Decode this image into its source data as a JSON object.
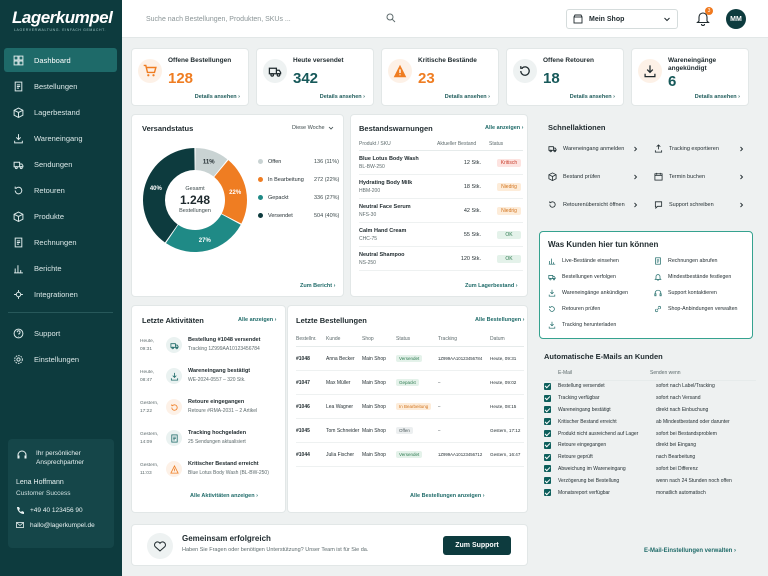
{
  "brand": {
    "name": "Lagerkumpel",
    "tagline": "LAGERVERWALTUNG. EINFACH GEMACHT."
  },
  "sidebar": {
    "items": [
      {
        "label": "Dashboard",
        "icon": "dashboard-icon"
      },
      {
        "label": "Bestellungen",
        "icon": "orders-icon"
      },
      {
        "label": "Lagerbestand",
        "icon": "inventory-icon"
      },
      {
        "label": "Wareneingang",
        "icon": "inbound-icon"
      },
      {
        "label": "Sendungen",
        "icon": "truck-icon"
      },
      {
        "label": "Retouren",
        "icon": "returns-icon"
      },
      {
        "label": "Produkte",
        "icon": "box-icon"
      },
      {
        "label": "Rechnungen",
        "icon": "invoice-icon"
      },
      {
        "label": "Berichte",
        "icon": "chart-icon"
      },
      {
        "label": "Integrationen",
        "icon": "integration-icon"
      }
    ],
    "bottom": [
      {
        "label": "Support",
        "icon": "help-icon"
      },
      {
        "label": "Einstellungen",
        "icon": "gear-icon"
      }
    ],
    "contact": {
      "title": "Ihr persönlicher Ansprechpartner",
      "name": "Lena Hoffmann",
      "role": "Customer Success",
      "phone": "+49 40 123456 90",
      "email": "hallo@lagerkumpel.de"
    }
  },
  "topbar": {
    "search_placeholder": "Suche nach Bestellungen, Produkten, SKUs ...",
    "shop": "Mein Shop",
    "notifications": "3",
    "avatar": "MM"
  },
  "kpis": [
    {
      "label": "Offene Bestellungen",
      "value": "128",
      "link": "Details ansehen",
      "color": "#ef7d22"
    },
    {
      "label": "Heute versendet",
      "value": "342",
      "link": "Details ansehen",
      "color": "#17595a"
    },
    {
      "label": "Kritische Bestände",
      "value": "23",
      "link": "Details ansehen",
      "color": "#ef7d22"
    },
    {
      "label": "Offene Retouren",
      "value": "18",
      "link": "Details ansehen",
      "color": "#17595a"
    },
    {
      "label": "Wareneingänge angekündigt",
      "value": "6",
      "link": "Details ansehen",
      "color": "#17595a"
    }
  ],
  "versand": {
    "title": "Versandstatus",
    "period": "Diese Woche",
    "total_label": "Gesamt",
    "total": "1.248",
    "total_sub": "Bestellungen",
    "link": "Zum Bericht"
  },
  "chart_data": {
    "type": "pie",
    "title": "Versandstatus",
    "total": 1248,
    "categories": [
      "Offen",
      "In Bearbeitung",
      "Gepackt",
      "Versendet"
    ],
    "values": [
      136,
      272,
      336,
      504
    ],
    "percent_labels": [
      "11%",
      "22%",
      "27%",
      "40%"
    ],
    "legend_values": [
      "136 (11%)",
      "272 (22%)",
      "336 (27%)",
      "504 (40%)"
    ],
    "colors": [
      "#c9d3d3",
      "#ef7d22",
      "#1f8a86",
      "#0d3b3e"
    ],
    "legend": "right"
  },
  "bestand": {
    "title": "Bestandswarnungen",
    "link": "Alle anzeigen",
    "headers": [
      "Produkt / SKU",
      "Aktueller Bestand",
      "Status"
    ],
    "rows": [
      {
        "name": "Blue Lotus Body Wash",
        "sku": "BL-BW-250",
        "qty": "12 Stk.",
        "status": "Kritisch",
        "tone": "red"
      },
      {
        "name": "Hydrating Body Milk",
        "sku": "HBM-200",
        "qty": "18 Stk.",
        "status": "Niedrig",
        "tone": "orange"
      },
      {
        "name": "Neutral Face Serum",
        "sku": "NFS-30",
        "qty": "42 Stk.",
        "status": "Niedrig",
        "tone": "orange"
      },
      {
        "name": "Calm Hand Cream",
        "sku": "CHC-75",
        "qty": "55 Stk.",
        "status": "OK",
        "tone": "green"
      },
      {
        "name": "Neutral Shampoo",
        "sku": "NS-250",
        "qty": "120 Stk.",
        "status": "OK",
        "tone": "green"
      }
    ],
    "footer": "Zum Lagerbestand"
  },
  "schnell": {
    "title": "Schnellaktionen",
    "items": [
      {
        "label": "Wareneingang anmelden",
        "icon": "truck-in-icon"
      },
      {
        "label": "Tracking exportieren",
        "icon": "export-icon"
      },
      {
        "label": "Bestand prüfen",
        "icon": "box-icon"
      },
      {
        "label": "Termin buchen",
        "icon": "calendar-icon"
      },
      {
        "label": "Retourenübersicht öffnen",
        "icon": "return-icon"
      },
      {
        "label": "Support schreiben",
        "icon": "chat-icon"
      }
    ]
  },
  "kunden": {
    "title": "Was Kunden hier tun können",
    "items": [
      {
        "label": "Live-Bestände einsehen",
        "icon": "bar-icon"
      },
      {
        "label": "Rechnungen abrufen",
        "icon": "doc-icon"
      },
      {
        "label": "Bestellungen verfolgen",
        "icon": "truck-icon"
      },
      {
        "label": "Mindestbestände festlegen",
        "icon": "bell-icon"
      },
      {
        "label": "Wareneingänge ankündigen",
        "icon": "download-icon"
      },
      {
        "label": "Support kontaktieren",
        "icon": "headset-icon"
      },
      {
        "label": "Retouren prüfen",
        "icon": "return-icon"
      },
      {
        "label": "Shop-Anbindungen verwalten",
        "icon": "link-icon"
      },
      {
        "label": "Tracking herunterladen",
        "icon": "download-icon"
      }
    ]
  },
  "aktiv": {
    "title": "Letzte Aktivitäten",
    "link": "Alle anzeigen",
    "footer": "Alle Aktivitäten anzeigen",
    "items": [
      {
        "day": "Heute,",
        "time": "09:31",
        "title": "Bestellung #1048 versendet",
        "sub": "Tracking 1Z999AA10123456784",
        "icon": "truck-icon",
        "color": "#1f6b69"
      },
      {
        "day": "Heute,",
        "time": "08:47",
        "title": "Wareneingang bestätigt",
        "sub": "WE-2024-0557 – 320 Stk.",
        "icon": "download-icon",
        "color": "#1f6b69"
      },
      {
        "day": "Gestern,",
        "time": "17:22",
        "title": "Retoure eingegangen",
        "sub": "Retoure #RMA-2031 – 2 Artikel",
        "icon": "return-icon",
        "color": "#ef7d22"
      },
      {
        "day": "Gestern,",
        "time": "14:09",
        "title": "Tracking hochgeladen",
        "sub": "25 Sendungen aktualisiert",
        "icon": "doc-icon",
        "color": "#1f6b69"
      },
      {
        "day": "Gestern,",
        "time": "11:03",
        "title": "Kritischer Bestand erreicht",
        "sub": "Blue Lotus Body Wash (BL-BW-250)",
        "icon": "warning-icon",
        "color": "#ef7d22"
      }
    ]
  },
  "orders": {
    "title": "Letzte Bestellungen",
    "link": "Alle Bestellungen",
    "footer": "Alle Bestellungen anzeigen",
    "headers": [
      "Bestellnr.",
      "Kunde",
      "Shop",
      "Status",
      "Tracking",
      "Datum"
    ],
    "rows": [
      {
        "id": "#1048",
        "kunde": "Anna Becker",
        "shop": "Main Shop",
        "status": "Versendet",
        "tone": "green",
        "tracking": "1Z999AA10123456784",
        "datum": "Heute, 09:31"
      },
      {
        "id": "#1047",
        "kunde": "Max Müller",
        "shop": "Main Shop",
        "status": "Gepackt",
        "tone": "green",
        "tracking": "–",
        "datum": "Heute, 09:02"
      },
      {
        "id": "#1046",
        "kunde": "Lea Wagner",
        "shop": "Main Shop",
        "status": "In Bearbeitung",
        "tone": "orange",
        "tracking": "–",
        "datum": "Heute, 08:15"
      },
      {
        "id": "#1045",
        "kunde": "Tom Schneider",
        "shop": "Main Shop",
        "status": "Offen",
        "tone": "grey",
        "tracking": "–",
        "datum": "Gestern, 17:12"
      },
      {
        "id": "#1044",
        "kunde": "Julia Fischer",
        "shop": "Main Shop",
        "status": "Versendet",
        "tone": "green",
        "tracking": "1Z999AA10123456712",
        "datum": "Gestern, 16:47"
      }
    ]
  },
  "emails": {
    "title": "Automatische E-Mails an Kunden",
    "headers": [
      "E-Mail",
      "Senden wenn"
    ],
    "footer": "E-Mail-Einstellungen verwalten",
    "rows": [
      {
        "name": "Bestellung versendet",
        "when": "sofort nach Label/Tracking"
      },
      {
        "name": "Tracking verfügbar",
        "when": "sofort nach Versand"
      },
      {
        "name": "Wareneingang bestätigt",
        "when": "direkt nach Einbuchung"
      },
      {
        "name": "Kritischer Bestand erreicht",
        "when": "ab Mindestbestand oder darunter"
      },
      {
        "name": "Produkt nicht ausreichend auf Lager",
        "when": "sofort bei Bestandsproblem"
      },
      {
        "name": "Retoure eingegangen",
        "when": "direkt bei Eingang"
      },
      {
        "name": "Retoure geprüft",
        "when": "nach Bearbeitung"
      },
      {
        "name": "Abweichung im Wareneingang",
        "when": "sofort bei Differenz"
      },
      {
        "name": "Verzögerung bei Bestellung",
        "when": "wenn nach 24 Stunden noch offen"
      },
      {
        "name": "Monatsreport verfügbar",
        "when": "monatlich automatisch"
      }
    ]
  },
  "footer": {
    "title": "Gemeinsam erfolgreich",
    "text": "Haben Sie Fragen oder benötigen Unterstützung? Unser Team ist für Sie da.",
    "button": "Zum Support"
  }
}
